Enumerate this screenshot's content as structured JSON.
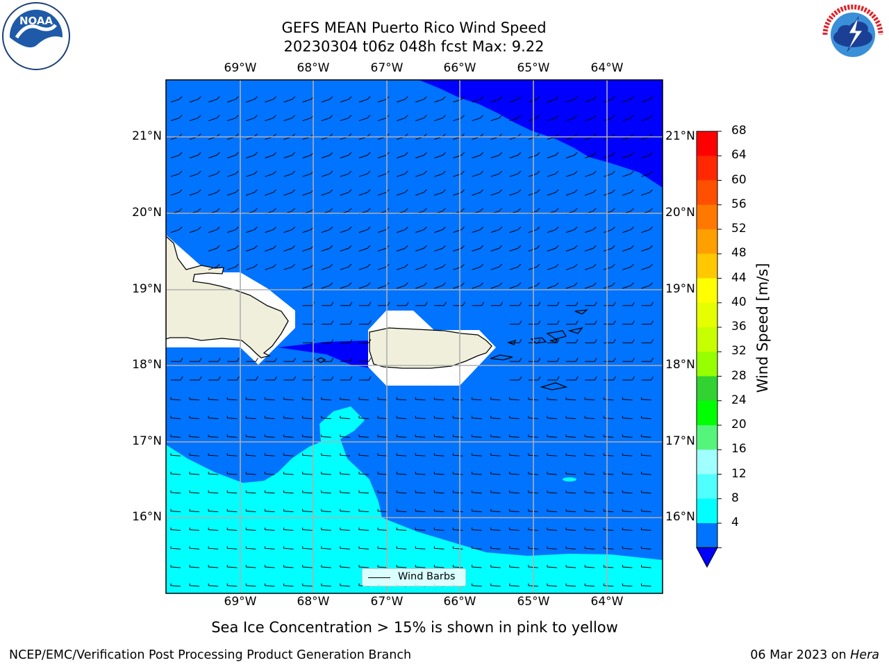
{
  "title": {
    "line1": "GEFS MEAN Puerto Rico Wind Speed",
    "line2": "20230304 t06z 048h fcst   Max: 9.22"
  },
  "map": {
    "lon_labels": [
      "69°W",
      "68°W",
      "67°W",
      "66°W",
      "65°W",
      "64°W"
    ],
    "lat_labels": [
      "21°N",
      "20°N",
      "19°N",
      "18°N",
      "17°N",
      "16°N"
    ],
    "legend_label": "Wind Barbs",
    "colors": {
      "speed_0_4": "#0000ff",
      "speed_4_8": "#0073ff",
      "speed_8_12": "#00ffff",
      "land": "#efefdb",
      "grid": "#b0b0b0"
    }
  },
  "colorbar": {
    "title": "Wind Speed [m/s]",
    "ticks": [
      "68",
      "64",
      "60",
      "56",
      "52",
      "48",
      "44",
      "40",
      "36",
      "32",
      "28",
      "24",
      "20",
      "16",
      "12",
      "8",
      "4"
    ],
    "colors": [
      "#ff0000",
      "#ff2800",
      "#ff5000",
      "#ff7800",
      "#ff9f00",
      "#ffc800",
      "#ffff00",
      "#e6ff00",
      "#c8ff00",
      "#96ff00",
      "#32d232",
      "#00ff00",
      "#55f57b",
      "#a0ffff",
      "#50ffff",
      "#00ffff",
      "#0073ff"
    ],
    "extend_color": "#0000ff"
  },
  "note": "Sea Ice Concentration > 15% is shown in pink to yellow",
  "footer": {
    "left": "NCEP/EMC/Verification Post Processing Product Generation Branch",
    "right_date": "06 Mar 2023 on ",
    "right_host": "Hera"
  },
  "logos": {
    "noaa": "NOAA",
    "noaa_ring": "NATIONAL OCEANIC AND ATMOSPHERIC ADMINISTRATION · U.S. DEPARTMENT OF COMMERCE",
    "nws_ring": "NATIONAL WEATHER SERVICE"
  }
}
